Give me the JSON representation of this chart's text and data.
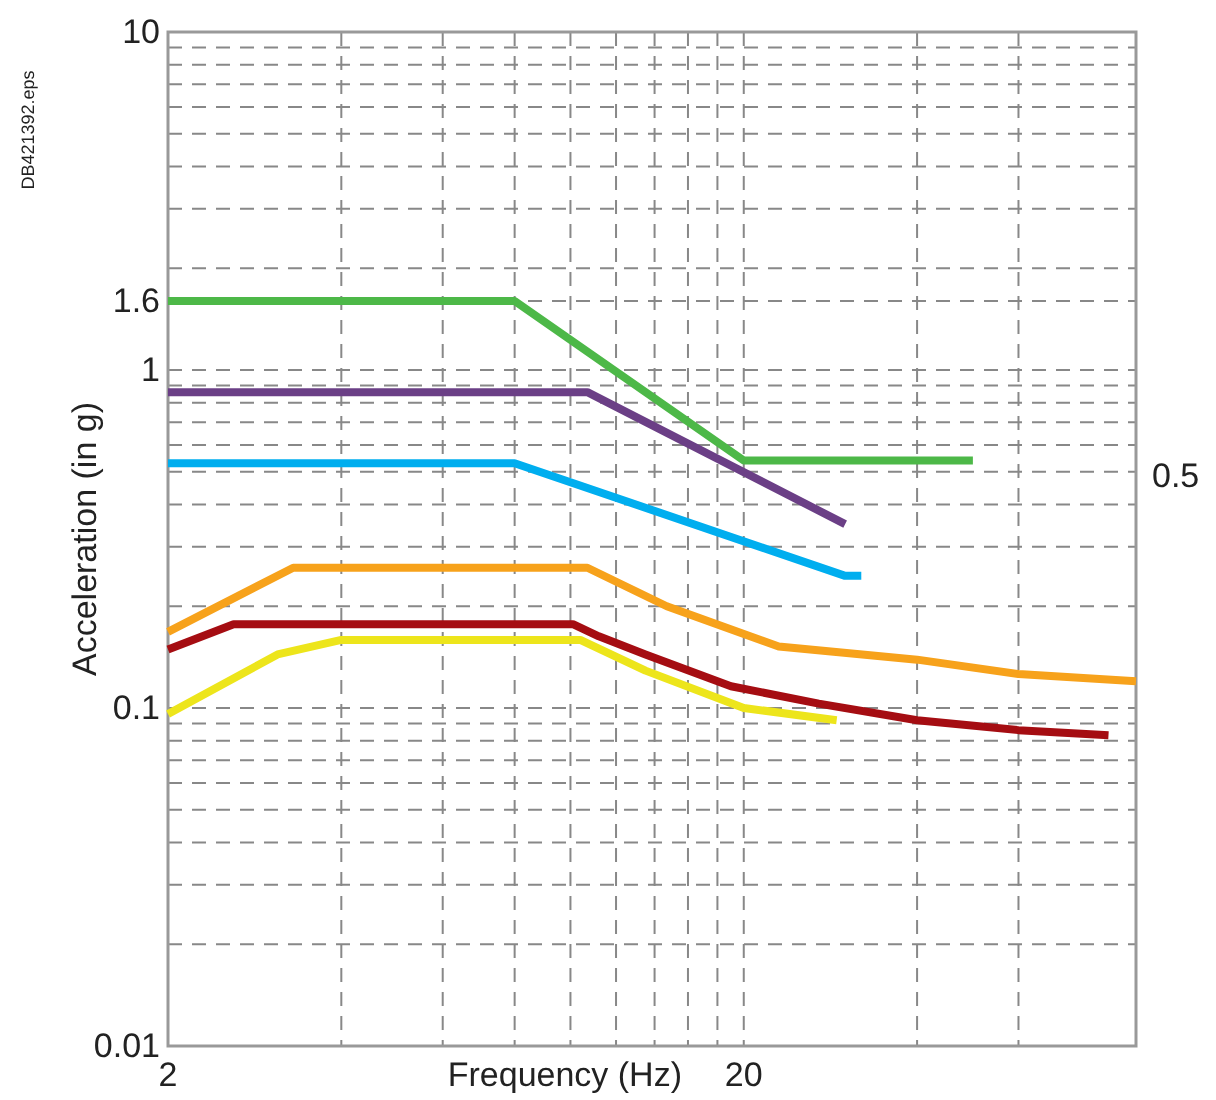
{
  "chart_data": {
    "type": "line",
    "xlabel": "Frequency (Hz)",
    "ylabel": "Acceleration (in g)",
    "log": "xy",
    "grid": true,
    "marker": "none",
    "line_style": "solid",
    "xlim": [
      2,
      96
    ],
    "xticks": [
      2,
      {
        "value": 4,
        "label": null
      },
      {
        "value": 6,
        "label": null
      },
      {
        "value": 8,
        "label": null
      },
      {
        "value": 10,
        "label": null
      },
      {
        "value": 12,
        "label": null
      },
      {
        "value": 14,
        "label": null
      },
      {
        "value": 16,
        "label": null
      },
      {
        "value": 18,
        "label": null
      },
      20,
      {
        "value": 40,
        "label": null
      },
      {
        "value": 60,
        "label": null
      }
    ],
    "ylim": [
      0.01,
      10
    ],
    "yticks": [
      0.01,
      {
        "value": 0.02,
        "label": null
      },
      {
        "value": 0.03,
        "label": null
      },
      {
        "value": 0.04,
        "label": null
      },
      {
        "value": 0.05,
        "label": null
      },
      {
        "value": 0.06,
        "label": null
      },
      {
        "value": 0.07,
        "label": null
      },
      {
        "value": 0.08,
        "label": null
      },
      {
        "value": 0.09,
        "label": null
      },
      0.1,
      {
        "value": 0.2,
        "label": null
      },
      {
        "value": 0.3,
        "label": null
      },
      {
        "value": 0.4,
        "label": null
      },
      {
        "value": 0.5,
        "label": null
      },
      {
        "value": 0.6,
        "label": null
      },
      {
        "value": 0.7,
        "label": null
      },
      {
        "value": 0.8,
        "label": null
      },
      {
        "value": 0.9,
        "label": null
      },
      1,
      1.6,
      {
        "value": 2,
        "label": null
      },
      {
        "value": 3,
        "label": null
      },
      {
        "value": 4,
        "label": null
      },
      {
        "value": 5,
        "label": null
      },
      {
        "value": 6,
        "label": null
      },
      {
        "value": 7,
        "label": null
      },
      {
        "value": 8,
        "label": null
      },
      {
        "value": 9,
        "label": null
      },
      10
    ],
    "annotations": [
      "DB421392.eps",
      "0.5"
    ],
    "series": [
      {
        "color": "#4db848",
        "x": [
          2,
          8,
          20,
          50
        ],
        "values": [
          1.6,
          1.6,
          0.54,
          0.54
        ]
      },
      {
        "color": "#6b3f86",
        "x": [
          2,
          10.7,
          30
        ],
        "values": [
          0.86,
          0.86,
          0.35
        ]
      },
      {
        "color": "#00aeef",
        "x": [
          2,
          8,
          30,
          32
        ],
        "values": [
          0.53,
          0.53,
          0.246,
          0.246
        ]
      },
      {
        "color": "#f7a21b",
        "x": [
          2,
          3.3,
          10.7,
          14.7,
          23,
          40,
          60,
          96
        ],
        "values": [
          0.168,
          0.26,
          0.26,
          0.2,
          0.152,
          0.139,
          0.126,
          0.12
        ]
      },
      {
        "color": "#a50d12",
        "x": [
          2,
          2.6,
          10.1,
          11.2,
          13.5,
          19,
          27,
          40,
          60,
          86
        ],
        "values": [
          0.149,
          0.177,
          0.177,
          0.163,
          0.144,
          0.116,
          0.103,
          0.092,
          0.086,
          0.083
        ]
      },
      {
        "color": "#ede51b",
        "x": [
          2,
          3.1,
          4,
          10.4,
          13.5,
          20,
          29
        ],
        "values": [
          0.096,
          0.144,
          0.159,
          0.159,
          0.129,
          0.1,
          0.092
        ]
      }
    ]
  }
}
